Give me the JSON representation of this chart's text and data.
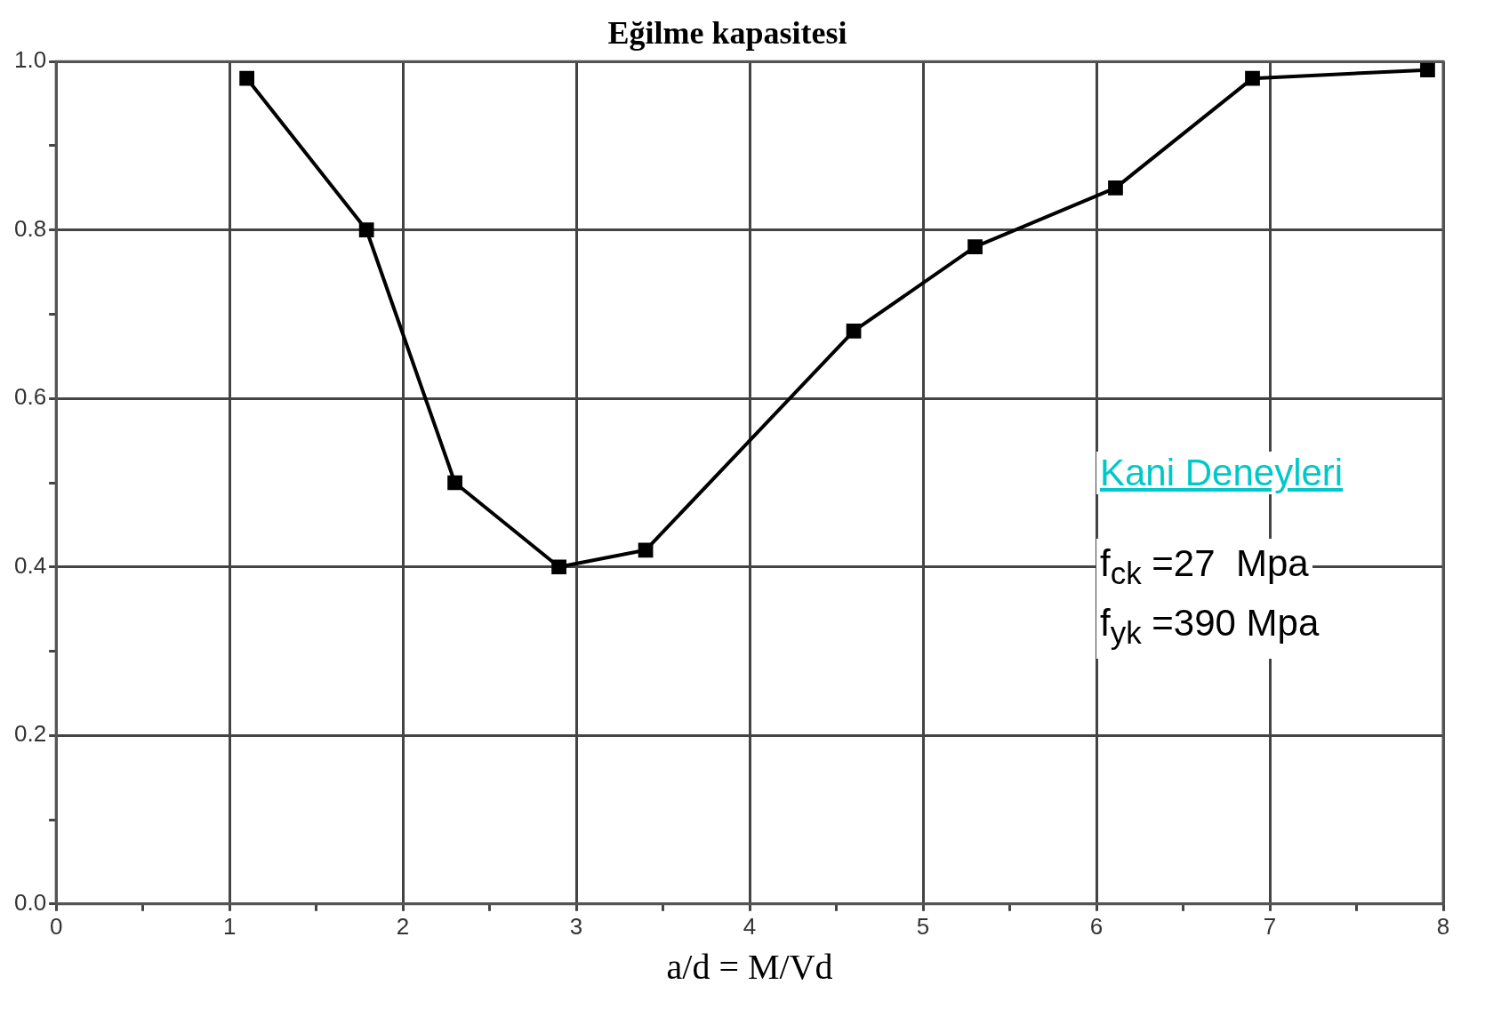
{
  "chart_data": {
    "type": "line",
    "title": "Eğilme kapasitesi",
    "xlabel": "a/d = M/Vd",
    "x": [
      1.1,
      1.79,
      2.3,
      2.9,
      3.4,
      4.6,
      5.3,
      6.11,
      6.9,
      7.91
    ],
    "series": [
      {
        "color": "#000000",
        "values": [
          0.98,
          0.8,
          0.5,
          0.4,
          0.42,
          0.68,
          0.78,
          0.85,
          0.98,
          0.99
        ]
      }
    ],
    "xlim": [
      0,
      8
    ],
    "xticks": [
      0,
      {
        "value": 0.5,
        "label": null
      },
      1,
      {
        "value": 1.5,
        "label": null
      },
      2,
      {
        "value": 2.5,
        "label": null
      },
      3,
      {
        "value": 3.5,
        "label": null
      },
      4,
      {
        "value": 4.5,
        "label": null
      },
      5,
      {
        "value": 5.5,
        "label": null
      },
      6,
      {
        "value": 6.5,
        "label": null
      },
      7,
      {
        "value": 7.5,
        "label": null
      },
      8
    ],
    "ylim": [
      0,
      1
    ],
    "yticks": [
      {
        "value": 0,
        "label": "0.0"
      },
      {
        "value": 0.1,
        "label": null
      },
      {
        "value": 0.2,
        "label": "0.2"
      },
      {
        "value": 0.3,
        "label": null
      },
      {
        "value": 0.4,
        "label": "0.4"
      },
      {
        "value": 0.5,
        "label": null
      },
      {
        "value": 0.6,
        "label": "0.6"
      },
      {
        "value": 0.7,
        "label": null
      },
      {
        "value": 0.8,
        "label": "0.8"
      },
      {
        "value": 0.9,
        "label": null
      },
      {
        "value": 1,
        "label": "1.0"
      }
    ],
    "grid": true,
    "marker": "square",
    "line_style": "solid",
    "legend": false,
    "annotations": [
      "Kani Deneyleri",
      "f$_{ck}$ =27  Mpa",
      "f$_{yk}$ =390 Mpa"
    ]
  }
}
